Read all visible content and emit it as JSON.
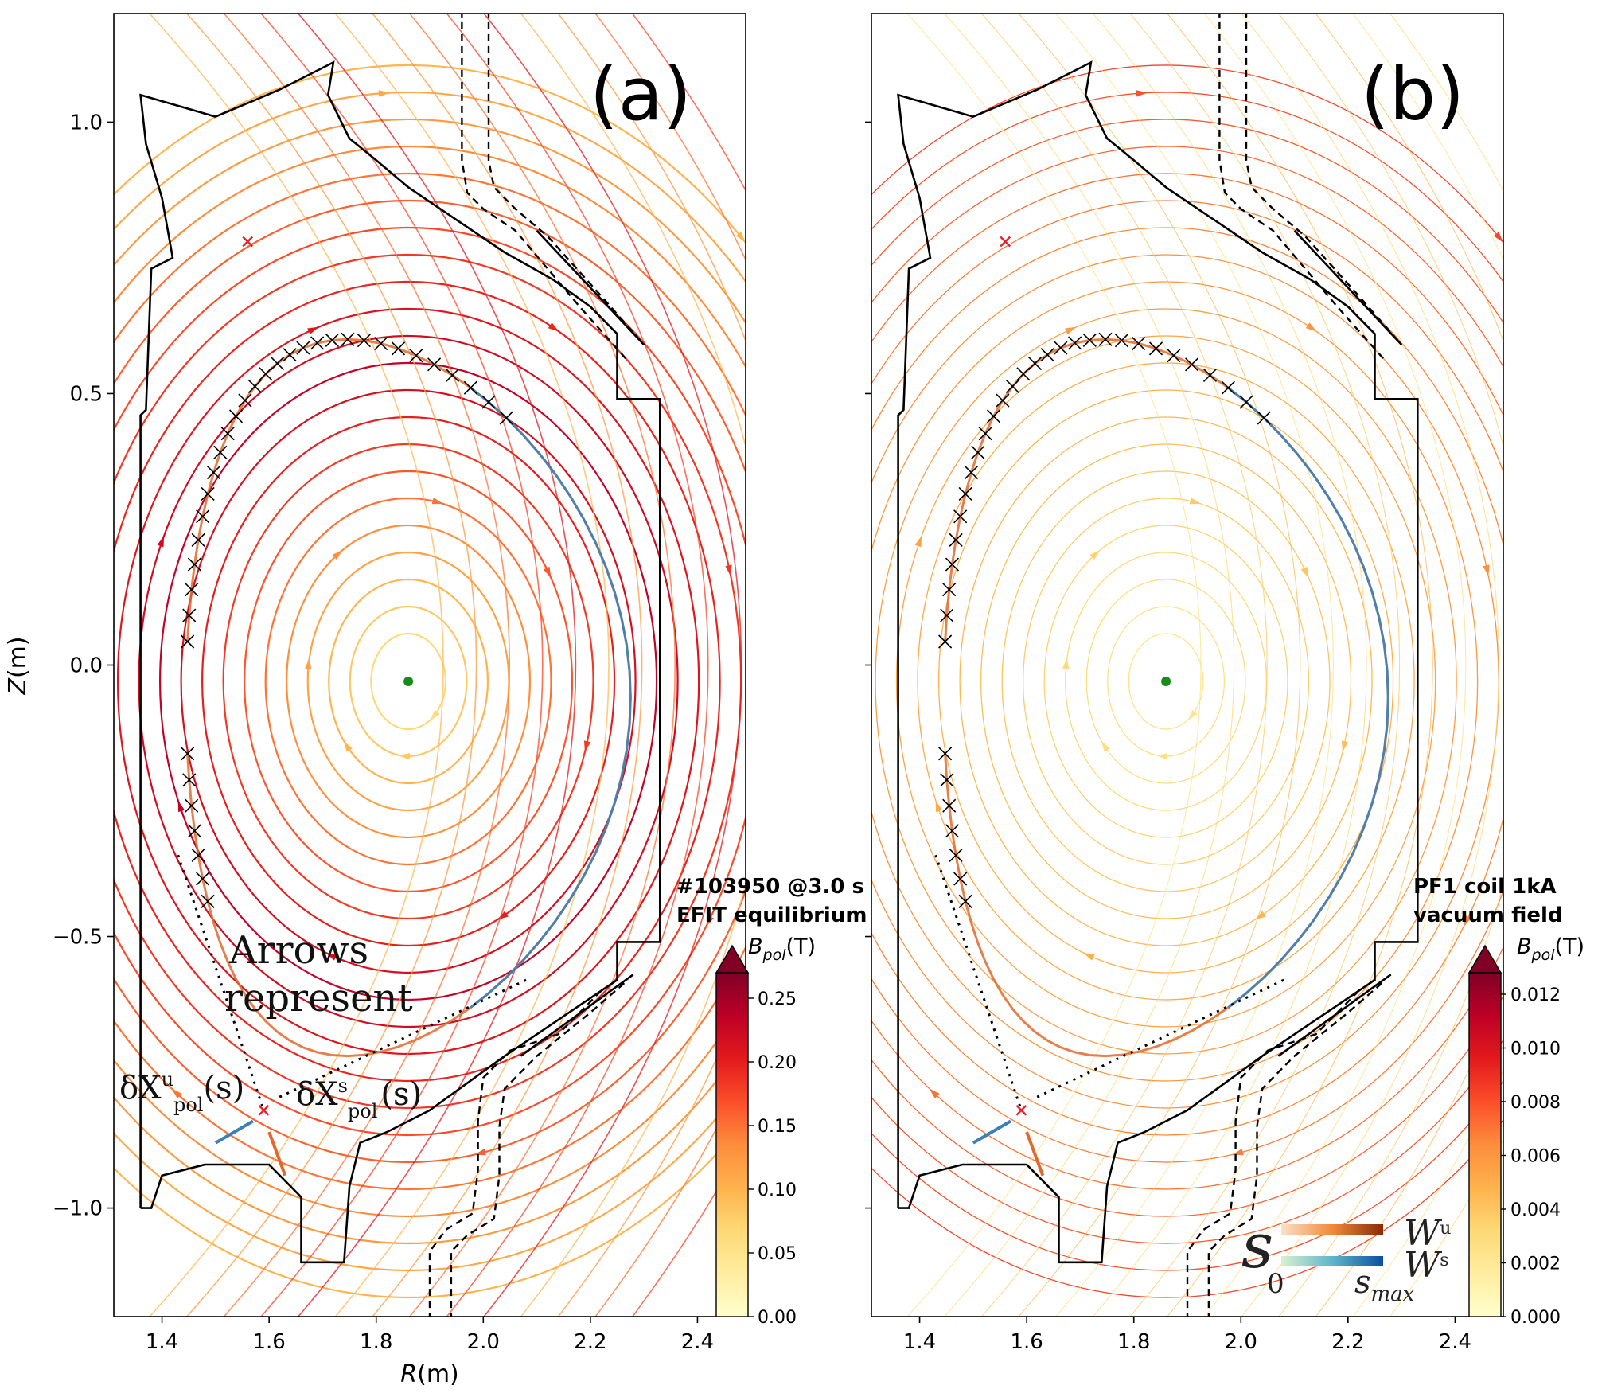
{
  "chart_data": [
    {
      "type": "line",
      "panel_label": "(a)",
      "description_title": "#103950 @3.0 s EFIT equilibrium",
      "title_lines": [
        "#103950 @3.0 s",
        "EFIT equilibrium"
      ],
      "xlabel": "R(m)",
      "ylabel": "Z(m)",
      "xlim": [
        1.31,
        2.49
      ],
      "ylim": [
        -1.2,
        1.2
      ],
      "xticks": [
        1.4,
        1.6,
        1.8,
        2.0,
        2.2,
        2.4
      ],
      "xtick_labels": [
        "1.4",
        "1.6",
        "1.8",
        "2.0",
        "2.2",
        "2.4"
      ],
      "yticks": [
        1.0,
        0.5,
        0.0,
        -0.5,
        -1.0
      ],
      "ytick_labels": [
        "1.0",
        "0.5",
        "0.0",
        "−0.5",
        "−1.0"
      ],
      "colorbar": {
        "label": "B_pol(T)",
        "label_main": "B",
        "label_sub": "pol",
        "label_tail": "(T)",
        "range": [
          0,
          0.27
        ],
        "ticks": [
          0.0,
          0.05,
          0.1,
          0.15,
          0.2,
          0.25
        ],
        "tick_labels": [
          "0.00",
          "0.05",
          "0.10",
          "0.15",
          "0.20",
          "0.25"
        ],
        "extend": "max"
      },
      "magnetic_axis": {
        "R": 1.86,
        "Z": -0.03
      },
      "x_points": [
        {
          "R": 1.56,
          "Z": 0.78
        },
        {
          "R": 1.59,
          "Z": -0.82
        }
      ],
      "annotations": {
        "line1": "Arrows",
        "line2": "represent",
        "u_base": "δX",
        "u_sup": "u",
        "u_sub": "pol",
        "u_arg": "(s)",
        "s_base": "δX",
        "s_sup": "s",
        "s_sub": "pol",
        "s_arg": "(s)"
      }
    },
    {
      "type": "line",
      "panel_label": "(b)",
      "description_title": "PF1 coil 1kA vacuum field",
      "title_lines": [
        "PF1 coil 1kA",
        "vacuum field"
      ],
      "xlabel": "R(m)",
      "ylabel": "Z(m)",
      "xlim": [
        1.31,
        2.49
      ],
      "ylim": [
        -1.2,
        1.2
      ],
      "xticks": [
        1.4,
        1.6,
        1.8,
        2.0,
        2.2,
        2.4
      ],
      "xtick_labels": [
        "1.4",
        "1.6",
        "1.8",
        "2.0",
        "2.2",
        "2.4"
      ],
      "colorbar": {
        "label": "B_pol(T)",
        "label_main": "B",
        "label_sub": "pol",
        "label_tail": "(T)",
        "range": [
          0,
          0.0128
        ],
        "ticks": [
          0.0,
          0.002,
          0.004,
          0.006,
          0.008,
          0.01,
          0.012
        ],
        "tick_labels": [
          "0.000",
          "0.002",
          "0.004",
          "0.006",
          "0.008",
          "0.010",
          "0.012"
        ],
        "extend": "max"
      },
      "magnetic_axis": {
        "R": 1.86,
        "Z": -0.03
      },
      "x_points": [
        {
          "R": 1.56,
          "Z": 0.78
        },
        {
          "R": 1.59,
          "Z": -0.82
        }
      ],
      "legend": {
        "s_symbol": "s",
        "zero_label": "0",
        "smax_main": "s",
        "smax_sub": "max",
        "wu_main": "W",
        "wu_sup": "u",
        "ws_main": "W",
        "ws_sup": "s"
      }
    }
  ],
  "colors": {
    "ylorrd": [
      "#ffffcc",
      "#ffeda0",
      "#fed976",
      "#feb24c",
      "#fd8d3c",
      "#fc4e2a",
      "#e31a1c",
      "#bd0026",
      "#800026"
    ],
    "unstable_manifold": "#e06a2c",
    "stable_manifold": "#3b7fb8",
    "axis_point": "#1a8a1a",
    "x_point": "#e8202a"
  }
}
